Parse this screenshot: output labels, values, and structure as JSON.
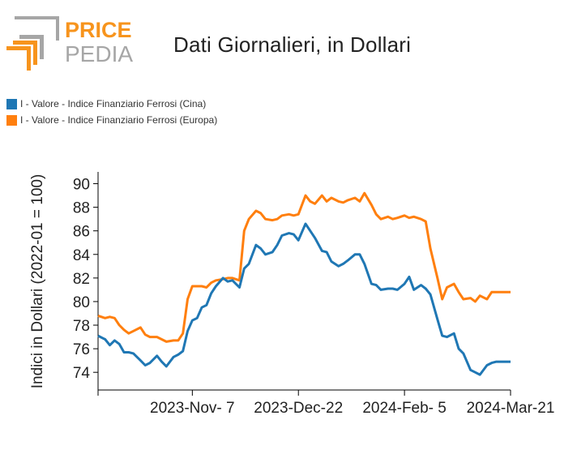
{
  "logo": {
    "word1": "PRICE",
    "word2": "PEDIA",
    "colors": {
      "orange": "#f7941d",
      "gray": "#a6a6a6"
    }
  },
  "chart_data": {
    "type": "line",
    "title": "Dati Giornalieri, in Dollari",
    "xlabel": "",
    "ylabel": "Indici in Dollari (2022-01 = 100)",
    "x": [
      "2023-09-28",
      "2023-10-01",
      "2023-10-03",
      "2023-10-05",
      "2023-10-07",
      "2023-10-09",
      "2023-10-11",
      "2023-10-13",
      "2023-10-16",
      "2023-10-18",
      "2023-10-20",
      "2023-10-23",
      "2023-10-25",
      "2023-10-27",
      "2023-10-30",
      "2023-11-01",
      "2023-11-03",
      "2023-11-05",
      "2023-11-07",
      "2023-11-09",
      "2023-11-11",
      "2023-11-13",
      "2023-11-15",
      "2023-11-17",
      "2023-11-20",
      "2023-11-22",
      "2023-11-24",
      "2023-11-27",
      "2023-11-29",
      "2023-12-01",
      "2023-12-04",
      "2023-12-06",
      "2023-12-08",
      "2023-12-11",
      "2023-12-13",
      "2023-12-15",
      "2023-12-18",
      "2023-12-20",
      "2023-12-22",
      "2023-12-25",
      "2023-12-27",
      "2023-12-29",
      "2024-01-01",
      "2024-01-03",
      "2024-01-05",
      "2024-01-08",
      "2024-01-10",
      "2024-01-12",
      "2024-01-15",
      "2024-01-17",
      "2024-01-19",
      "2024-01-22",
      "2024-01-24",
      "2024-01-26",
      "2024-01-29",
      "2024-01-31",
      "2024-02-02",
      "2024-02-05",
      "2024-02-07",
      "2024-02-09",
      "2024-02-12",
      "2024-02-14",
      "2024-02-16",
      "2024-02-19",
      "2024-02-21",
      "2024-02-23",
      "2024-02-26",
      "2024-02-28",
      "2024-03-01",
      "2024-03-04",
      "2024-03-06",
      "2024-03-08",
      "2024-03-11",
      "2024-03-13",
      "2024-03-15",
      "2024-03-18",
      "2024-03-20",
      "2024-03-21"
    ],
    "series": [
      {
        "name": "I - Valore - Indice Finanziario Ferrosi (Cina)",
        "color": "#1f77b4",
        "values": [
          77.1,
          76.8,
          76.3,
          76.7,
          76.4,
          75.7,
          75.7,
          75.6,
          75.0,
          74.6,
          74.8,
          75.4,
          74.9,
          74.5,
          75.3,
          75.5,
          75.8,
          77.5,
          78.4,
          78.6,
          79.5,
          79.7,
          80.7,
          81.3,
          82.0,
          81.7,
          81.8,
          81.2,
          82.8,
          83.2,
          84.8,
          84.5,
          84.0,
          84.2,
          84.8,
          85.6,
          85.8,
          85.7,
          85.2,
          86.6,
          86.0,
          85.4,
          84.3,
          84.2,
          83.4,
          83.0,
          83.2,
          83.5,
          84.0,
          84.0,
          83.2,
          81.5,
          81.4,
          81.0,
          81.1,
          81.1,
          81.0,
          81.5,
          82.1,
          81.0,
          81.4,
          81.1,
          80.6,
          78.5,
          77.1,
          77.0,
          77.3,
          76.0,
          75.6,
          74.2,
          74.0,
          73.8,
          74.6,
          74.8,
          74.9,
          74.9,
          74.9,
          74.9
        ]
      },
      {
        "name": "I - Valore - Indice Finanziario Ferrosi (Europa)",
        "color": "#ff7f0e",
        "values": [
          78.8,
          78.6,
          78.7,
          78.6,
          78.0,
          77.6,
          77.3,
          77.5,
          77.8,
          77.2,
          77.0,
          77.0,
          76.8,
          76.6,
          76.7,
          76.7,
          77.3,
          80.2,
          81.3,
          81.3,
          81.3,
          81.2,
          81.6,
          81.8,
          81.9,
          82.0,
          82.0,
          81.8,
          86.0,
          87.0,
          87.7,
          87.5,
          87.0,
          86.9,
          87.0,
          87.3,
          87.4,
          87.3,
          87.4,
          89.0,
          88.5,
          88.3,
          89.0,
          88.5,
          88.8,
          88.5,
          88.4,
          88.6,
          88.8,
          88.5,
          89.2,
          88.2,
          87.4,
          87.0,
          87.2,
          87.0,
          87.1,
          87.3,
          87.1,
          87.2,
          87.0,
          86.8,
          84.5,
          82.0,
          80.2,
          81.2,
          81.5,
          80.8,
          80.2,
          80.3,
          80.0,
          80.5,
          80.2,
          80.8,
          80.8,
          80.8,
          80.8,
          80.8
        ]
      }
    ],
    "ylim": [
      72.5,
      91
    ],
    "yticks": [
      74,
      76,
      78,
      80,
      82,
      84,
      86,
      88,
      90
    ],
    "xtick_labels": [
      "2023-Nov- 7",
      "2023-Dec-22",
      "2024-Feb- 5",
      "2024-Mar-21"
    ],
    "legend_position": "top-left",
    "grid": false
  }
}
